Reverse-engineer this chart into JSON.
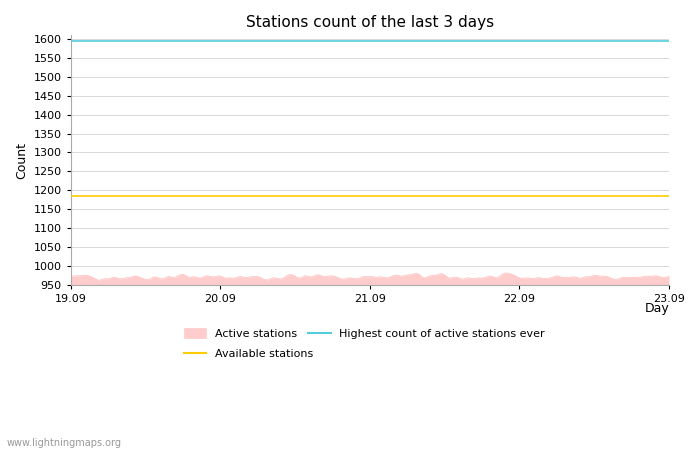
{
  "title": "Stations count of the last 3 days",
  "xlabel": "Day",
  "ylabel": "Count",
  "ylim": [
    950,
    1610
  ],
  "ytick_min": 950,
  "ytick_max": 1600,
  "ytick_step": 50,
  "x_start": 0,
  "x_end": 288,
  "xtick_positions": [
    0,
    72,
    144,
    216,
    288
  ],
  "xtick_labels": [
    "19.09",
    "20.09",
    "21.09",
    "22.09",
    "23.09"
  ],
  "highest_ever_value": 1595,
  "available_stations_value": 1185,
  "active_stations_mean": 970,
  "active_stations_std": 8,
  "active_color_fill": "#ffcccc",
  "active_color_line": "#ffbbbb",
  "highest_color": "#55ccdd",
  "available_color": "#ffcc00",
  "background_color": "#ffffff",
  "grid_color": "#d8d8d8",
  "title_fontsize": 11,
  "axis_label_fontsize": 9,
  "tick_fontsize": 8,
  "legend_fontsize": 8,
  "watermark": "www.lightningmaps.org"
}
